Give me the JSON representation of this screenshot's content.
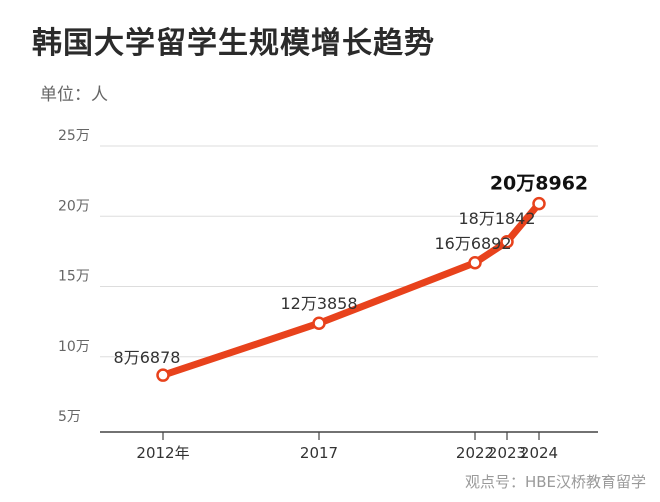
{
  "title": "韩国大学留学生规模增长趋势",
  "unit_label": "单位：人",
  "watermark": "观点号：HBE汉桥教育留学",
  "colors": {
    "line": "#e8421c",
    "marker_fill": "#ffffff",
    "grid": "#dddddd",
    "axis": "#444444",
    "text": "#333333",
    "tick": "#666666"
  },
  "chart_data": {
    "type": "line",
    "title": "韩国大学留学生规模增长趋势",
    "ylabel": "单位：人",
    "xlabel": "",
    "x": [
      2012,
      2017,
      2022,
      2023,
      2024
    ],
    "x_tick_labels": [
      "2012年",
      "2017",
      "2022",
      "2023",
      "2024"
    ],
    "values": [
      86878,
      123858,
      166892,
      181842,
      208962
    ],
    "data_labels": [
      "8万6878",
      "12万3858",
      "16万6892",
      "18万1842",
      "20万8962"
    ],
    "highlight_last_label": true,
    "ylim": [
      50000,
      250000
    ],
    "y_ticks": [
      50000,
      100000,
      150000,
      200000,
      250000
    ],
    "y_tick_labels": [
      "5万",
      "10万",
      "15万",
      "20万",
      "25万"
    ],
    "grid": true
  }
}
